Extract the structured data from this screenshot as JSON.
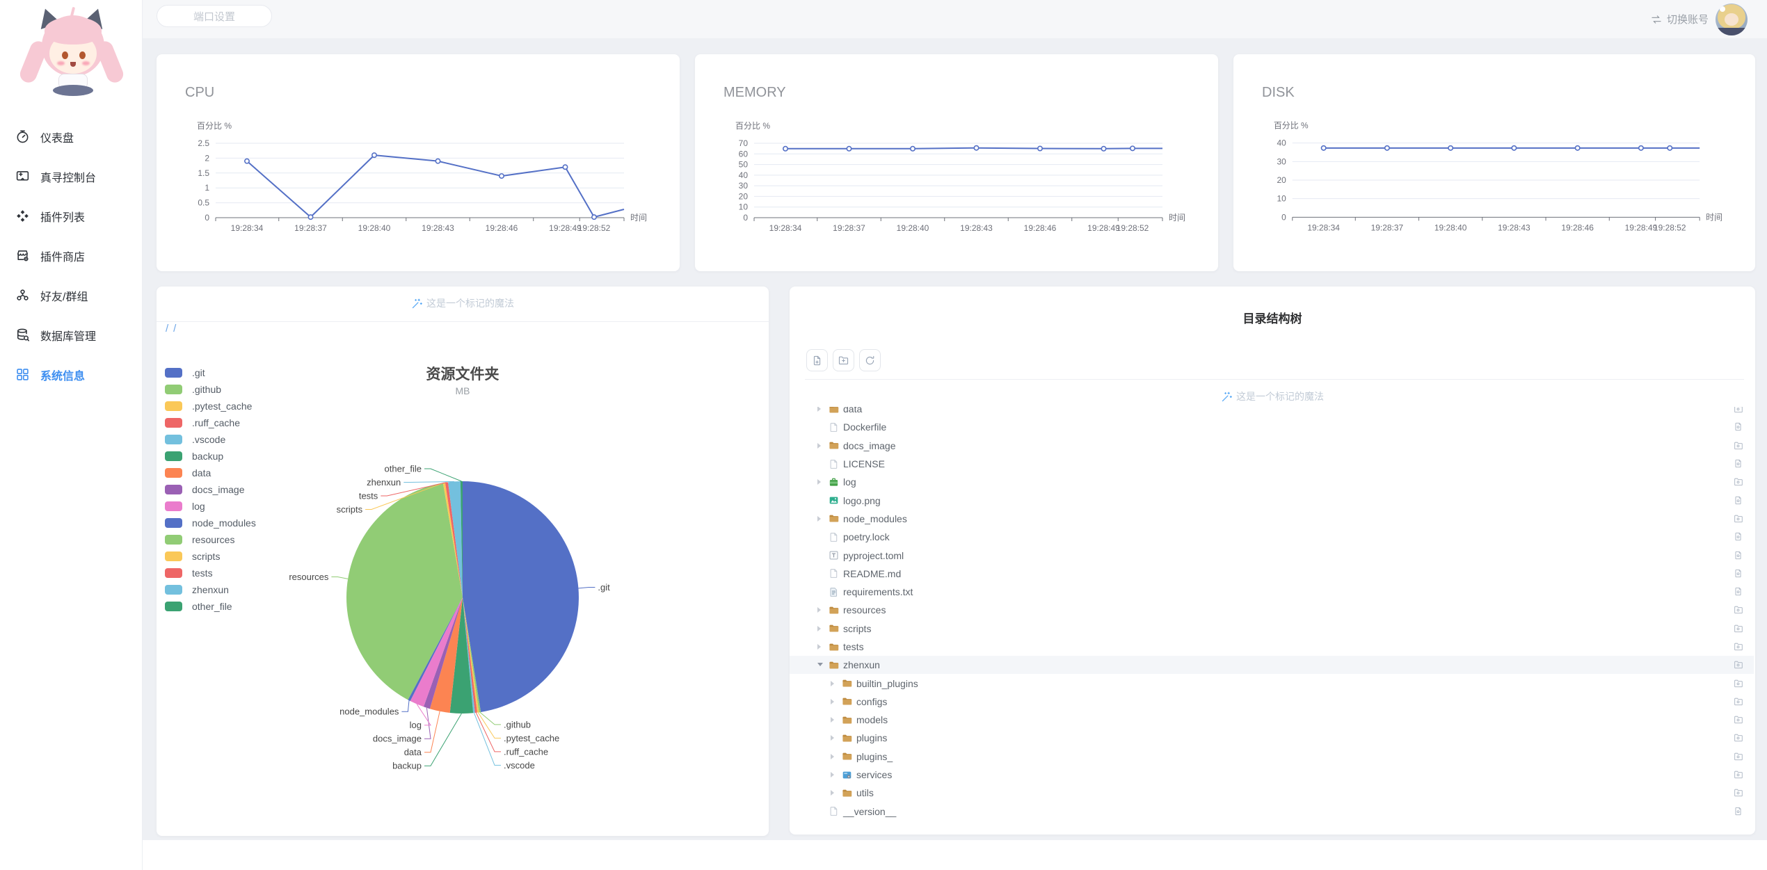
{
  "app": {
    "accent": "#3D8EF0",
    "content_bg": "#EEF0F4",
    "topbar_bg": "#F6F7F9",
    "card_bg": "#FFFFFF"
  },
  "sidebar": {
    "items": [
      {
        "id": "dashboard",
        "label": "仪表盘",
        "icon": "dashboard-icon",
        "active": false
      },
      {
        "id": "console",
        "label": "真寻控制台",
        "icon": "console-icon",
        "active": false
      },
      {
        "id": "plugin-list",
        "label": "插件列表",
        "icon": "plugin-list-icon",
        "active": false
      },
      {
        "id": "plugin-store",
        "label": "插件商店",
        "icon": "plugin-store-icon",
        "active": false
      },
      {
        "id": "friends-groups",
        "label": "好友/群组",
        "icon": "friends-icon",
        "active": false
      },
      {
        "id": "database",
        "label": "数据库管理",
        "icon": "database-icon",
        "active": false
      },
      {
        "id": "system-info",
        "label": "系统信息",
        "icon": "system-info-icon",
        "active": true
      }
    ]
  },
  "topbar": {
    "port_button": "端口设置",
    "switch_account": "切换账号"
  },
  "charts": {
    "y_axis_name": "百分比 %",
    "x_axis_name": "时间",
    "line_color": "#5470C6",
    "times": [
      "19:28:34",
      "19:28:37",
      "19:28:40",
      "19:28:43",
      "19:28:46",
      "19:28:49",
      "19:28:52"
    ],
    "items": [
      {
        "type": "line",
        "title": "CPU",
        "y_max": 2.5,
        "y_ticks": [
          0,
          0.5,
          1,
          1.5,
          2,
          2.5
        ],
        "values": [
          1.9,
          0.02,
          2.1,
          1.9,
          1.4,
          1.7,
          0.02
        ],
        "edge_value": 0.28
      },
      {
        "type": "line",
        "title": "MEMORY",
        "y_max": 70,
        "y_ticks": [
          0,
          10,
          20,
          30,
          40,
          50,
          60,
          70
        ],
        "values": [
          64.9,
          64.9,
          64.9,
          65.6,
          65.1,
          64.9,
          65.2
        ],
        "edge_value": 65.2
      },
      {
        "type": "line",
        "title": "DISK",
        "y_max": 40,
        "y_ticks": [
          0,
          10,
          20,
          30,
          40
        ],
        "values": [
          37.3,
          37.3,
          37.3,
          37.3,
          37.3,
          37.3,
          37.3
        ],
        "edge_value": 37.3
      }
    ]
  },
  "pie_card": {
    "marker_text": "这是一个标记的魔法",
    "breadcrumb": [
      "/",
      "/"
    ],
    "chart": {
      "type": "pie",
      "title": "资源文件夹",
      "subtitle": "MB",
      "unit": "MB",
      "items": [
        {
          "name": ".git",
          "percent": 47.5,
          "color": "#5470C6"
        },
        {
          "name": ".github",
          "percent": 0.25,
          "color": "#91CC75"
        },
        {
          "name": ".pytest_cache",
          "percent": 0.25,
          "color": "#FAC858"
        },
        {
          "name": ".ruff_cache",
          "percent": 0.3,
          "color": "#EE6666"
        },
        {
          "name": ".vscode",
          "percent": 0.25,
          "color": "#73C0DE"
        },
        {
          "name": "backup",
          "percent": 3.2,
          "color": "#3BA272"
        },
        {
          "name": "data",
          "percent": 2.8,
          "color": "#FC8452"
        },
        {
          "name": "docs_image",
          "percent": 0.9,
          "color": "#9A60B4"
        },
        {
          "name": "log",
          "percent": 2.0,
          "color": "#EA7CCC"
        },
        {
          "name": "node_modules",
          "percent": 0.35,
          "color": "#5470C6"
        },
        {
          "name": "resources",
          "percent": 39.5,
          "color": "#91CC75"
        },
        {
          "name": "scripts",
          "percent": 0.3,
          "color": "#FAC858"
        },
        {
          "name": "tests",
          "percent": 0.4,
          "color": "#EE6666"
        },
        {
          "name": "zhenxun",
          "percent": 1.7,
          "color": "#73C0DE"
        },
        {
          "name": "other_file",
          "percent": 0.3,
          "color": "#3BA272"
        }
      ]
    }
  },
  "tree_card": {
    "title": "目录结构树",
    "marker_text": "这是一个标记的魔法",
    "toolbar": [
      {
        "id": "new-file"
      },
      {
        "id": "new-folder"
      },
      {
        "id": "refresh"
      }
    ],
    "rows": [
      {
        "label": "data",
        "level": 0,
        "icon": "folder",
        "expandable": true
      },
      {
        "label": "Dockerfile",
        "level": 0,
        "icon": "file",
        "expandable": false
      },
      {
        "label": "docs_image",
        "level": 0,
        "icon": "folder",
        "expandable": true
      },
      {
        "label": "LICENSE",
        "level": 0,
        "icon": "file",
        "expandable": false
      },
      {
        "label": "log",
        "level": 0,
        "icon": "log",
        "expandable": true
      },
      {
        "label": "logo.png",
        "level": 0,
        "icon": "image",
        "expandable": false
      },
      {
        "label": "node_modules",
        "level": 0,
        "icon": "folder",
        "expandable": true
      },
      {
        "label": "poetry.lock",
        "level": 0,
        "icon": "file",
        "expandable": false
      },
      {
        "label": "pyproject.toml",
        "level": 0,
        "icon": "toml",
        "expandable": false
      },
      {
        "label": "README.md",
        "level": 0,
        "icon": "file",
        "expandable": false
      },
      {
        "label": "requirements.txt",
        "level": 0,
        "icon": "txt",
        "expandable": false
      },
      {
        "label": "resources",
        "level": 0,
        "icon": "folder",
        "expandable": true
      },
      {
        "label": "scripts",
        "level": 0,
        "icon": "folder",
        "expandable": true
      },
      {
        "label": "tests",
        "level": 0,
        "icon": "folder",
        "expandable": true
      },
      {
        "label": "zhenxun",
        "level": 0,
        "icon": "folder",
        "expandable": true,
        "expanded": true,
        "highlighted": true
      },
      {
        "label": "builtin_plugins",
        "level": 1,
        "icon": "folder",
        "expandable": true
      },
      {
        "label": "configs",
        "level": 1,
        "icon": "folder",
        "expandable": true
      },
      {
        "label": "models",
        "level": 1,
        "icon": "folder",
        "expandable": true
      },
      {
        "label": "plugins",
        "level": 1,
        "icon": "folder",
        "expandable": true
      },
      {
        "label": "plugins_",
        "level": 1,
        "icon": "folder",
        "expandable": true
      },
      {
        "label": "services",
        "level": 1,
        "icon": "services",
        "expandable": true
      },
      {
        "label": "utils",
        "level": 1,
        "icon": "folder",
        "expandable": true
      },
      {
        "label": "__version__",
        "level": 0,
        "icon": "file",
        "expandable": false
      }
    ]
  }
}
